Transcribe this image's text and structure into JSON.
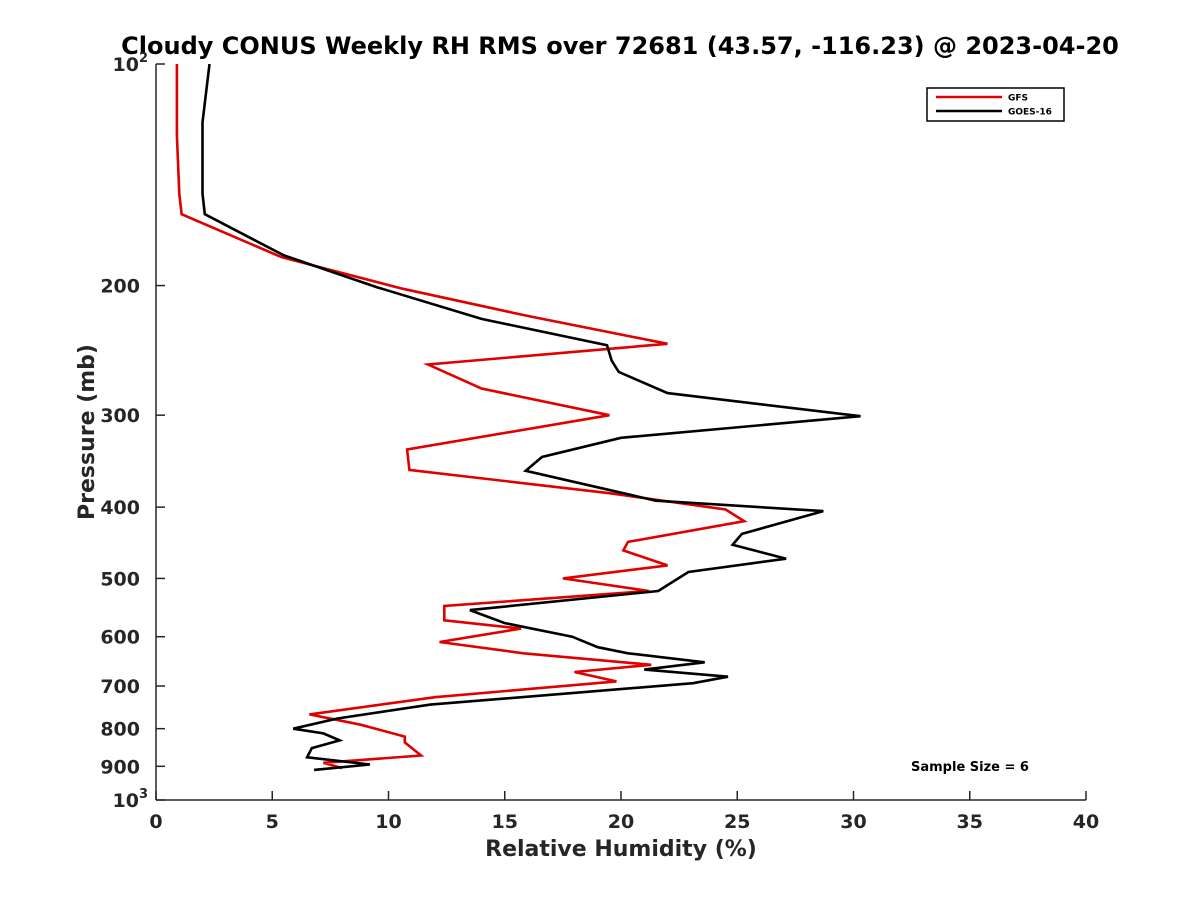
{
  "chart_data": {
    "type": "line",
    "title": "Cloudy CONUS Weekly RH RMS over 72681 (43.57, -116.23) @ 2023-04-20",
    "xlabel": "Relative Humidity (%)",
    "ylabel": "Pressure (mb)",
    "xlim": [
      0,
      40
    ],
    "ylim": [
      100,
      1000
    ],
    "y_scale": "log",
    "y_reversed": true,
    "x_ticks": [
      "0",
      "5",
      "10",
      "15",
      "20",
      "25",
      "30",
      "35",
      "40"
    ],
    "y_ticks": [
      {
        "value": 100,
        "base": "10",
        "exp": "2"
      },
      {
        "value": 200,
        "label": "200"
      },
      {
        "value": 300,
        "label": "300"
      },
      {
        "value": 400,
        "label": "400"
      },
      {
        "value": 500,
        "label": "500"
      },
      {
        "value": 600,
        "label": "600"
      },
      {
        "value": 700,
        "label": "700"
      },
      {
        "value": 800,
        "label": "800"
      },
      {
        "value": 900,
        "label": "900"
      },
      {
        "value": 1000,
        "base": "10",
        "exp": "3"
      }
    ],
    "grid": false,
    "legend_position": "top-right",
    "annotation": "Sample Size = 6",
    "series": [
      {
        "name": "GFS",
        "color": "#e00000",
        "points": [
          [
            0.9,
            100
          ],
          [
            0.9,
            125
          ],
          [
            1.0,
            150
          ],
          [
            1.1,
            160
          ],
          [
            5.4,
            183
          ],
          [
            10.6,
            202
          ],
          [
            16.0,
            220
          ],
          [
            22.0,
            240
          ],
          [
            11.7,
            256
          ],
          [
            14.0,
            276
          ],
          [
            19.5,
            300
          ],
          [
            10.8,
            334
          ],
          [
            10.9,
            356
          ],
          [
            19.5,
            383
          ],
          [
            24.5,
            403
          ],
          [
            25.3,
            418
          ],
          [
            20.3,
            446
          ],
          [
            20.1,
            458
          ],
          [
            22.0,
            480
          ],
          [
            17.5,
            500
          ],
          [
            21.2,
            520
          ],
          [
            12.4,
            545
          ],
          [
            12.4,
            570
          ],
          [
            15.7,
            585
          ],
          [
            12.2,
            610
          ],
          [
            15.8,
            632
          ],
          [
            21.3,
            655
          ],
          [
            18.0,
            670
          ],
          [
            19.8,
            690
          ],
          [
            12.0,
            725
          ],
          [
            6.6,
            765
          ],
          [
            8.8,
            790
          ],
          [
            10.7,
            820
          ],
          [
            10.7,
            835
          ],
          [
            11.2,
            860
          ],
          [
            11.4,
            870
          ],
          [
            7.2,
            890
          ],
          [
            8.0,
            905
          ]
        ]
      },
      {
        "name": "GOES-16",
        "color": "#000000",
        "points": [
          [
            2.3,
            100
          ],
          [
            2.0,
            120
          ],
          [
            2.0,
            150
          ],
          [
            2.1,
            160
          ],
          [
            5.5,
            182
          ],
          [
            9.5,
            201
          ],
          [
            14.0,
            222
          ],
          [
            19.4,
            241
          ],
          [
            19.6,
            253
          ],
          [
            19.9,
            262
          ],
          [
            22.0,
            280
          ],
          [
            30.3,
            301
          ],
          [
            20.0,
            322
          ],
          [
            16.6,
            342
          ],
          [
            15.9,
            357
          ],
          [
            21.5,
            392
          ],
          [
            28.7,
            405
          ],
          [
            25.2,
            435
          ],
          [
            24.8,
            450
          ],
          [
            27.1,
            470
          ],
          [
            22.9,
            490
          ],
          [
            21.6,
            520
          ],
          [
            13.5,
            552
          ],
          [
            15.0,
            575
          ],
          [
            17.9,
            600
          ],
          [
            19.0,
            620
          ],
          [
            20.3,
            632
          ],
          [
            23.6,
            650
          ],
          [
            21.0,
            665
          ],
          [
            24.6,
            680
          ],
          [
            23.1,
            694
          ],
          [
            11.8,
            742
          ],
          [
            7.8,
            775
          ],
          [
            5.9,
            800
          ],
          [
            7.2,
            812
          ],
          [
            7.9,
            830
          ],
          [
            6.7,
            850
          ],
          [
            6.5,
            875
          ],
          [
            9.2,
            895
          ],
          [
            6.8,
            910
          ]
        ]
      }
    ]
  }
}
